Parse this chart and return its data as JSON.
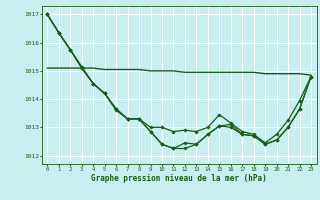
{
  "xlabel": "Graphe pression niveau de la mer (hPa)",
  "ylim": [
    1011.7,
    1017.3
  ],
  "xlim": [
    -0.5,
    23.5
  ],
  "yticks": [
    1012,
    1013,
    1014,
    1015,
    1016,
    1017
  ],
  "xticks": [
    0,
    1,
    2,
    3,
    4,
    5,
    6,
    7,
    8,
    9,
    10,
    11,
    12,
    13,
    14,
    15,
    16,
    17,
    18,
    19,
    20,
    21,
    22,
    23
  ],
  "bg_color": "#c8eef0",
  "grid_color": "#ffffff",
  "line_color": "#1a5c1a",
  "line1": [
    1017.0,
    1016.35,
    1015.75,
    1015.1,
    1014.55,
    1014.2,
    1013.65,
    1013.3,
    1013.3,
    1012.85,
    1012.4,
    1012.25,
    1012.25,
    1012.4,
    1012.75,
    1013.05,
    1013.0,
    1012.75,
    1012.7,
    1012.4,
    1012.55,
    1013.0,
    1013.65,
    1014.8
  ],
  "line2": [
    1017.0,
    1016.35,
    1015.75,
    1015.1,
    1014.55,
    1014.2,
    1013.65,
    1013.3,
    1013.3,
    1013.0,
    1013.0,
    1012.85,
    1012.9,
    1012.85,
    1013.0,
    1013.45,
    1013.15,
    1012.85,
    1012.75,
    1012.45,
    1012.75,
    1013.25,
    1013.95,
    1014.8
  ],
  "line3": [
    1015.1,
    1015.1,
    1015.1,
    1015.1,
    1015.1,
    1015.05,
    1015.05,
    1015.05,
    1015.05,
    1015.0,
    1015.0,
    1015.0,
    1014.95,
    1014.95,
    1014.95,
    1014.95,
    1014.95,
    1014.95,
    1014.95,
    1014.9,
    1014.9,
    1014.9,
    1014.9,
    1014.85
  ],
  "line4": [
    1017.0,
    1016.35,
    1015.75,
    1015.15,
    1014.55,
    1014.2,
    1013.6,
    1013.3,
    1013.3,
    1012.85,
    1012.4,
    1012.25,
    1012.45,
    1012.4,
    1012.75,
    1013.05,
    1013.1,
    1012.75,
    1012.7,
    1012.4,
    1012.55,
    1013.0,
    1013.65,
    1014.8
  ]
}
